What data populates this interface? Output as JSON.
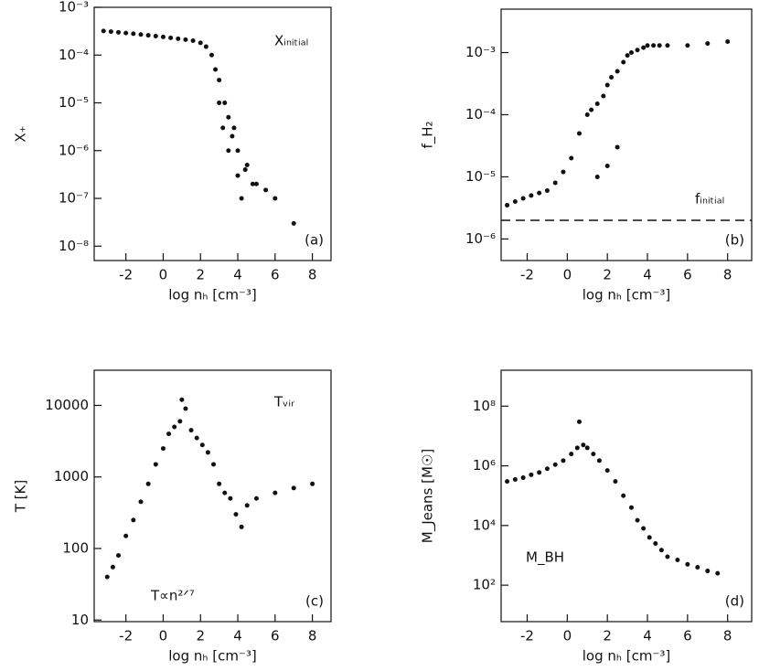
{
  "chart_data": [
    {
      "type": "scatter",
      "panel": "(a)",
      "ylabel": "X₊",
      "xlabel": "log nₕ [cm⁻³]",
      "annotation": "Xᵢₙᵢₜᵢₐₗ",
      "color": "#111",
      "yscale": "log",
      "xlim": [
        -3.7,
        9
      ],
      "ylim": [
        5e-09,
        0.001
      ],
      "xticks": [
        -2,
        0,
        2,
        4,
        6,
        8
      ],
      "yticks": [
        {
          "value": 0.001,
          "label": "10⁻³"
        },
        {
          "value": 0.0001,
          "label": "10⁻⁴"
        },
        {
          "value": 1e-05,
          "label": "10⁻⁵"
        },
        {
          "value": 1e-06,
          "label": "10⁻⁶"
        },
        {
          "value": 1e-07,
          "label": "10⁻⁷"
        },
        {
          "value": 1e-08,
          "label": "10⁻⁸"
        }
      ],
      "x": [
        -3.2,
        -2.8,
        -2.4,
        -2,
        -1.6,
        -1.2,
        -0.8,
        -0.4,
        0,
        0.4,
        0.8,
        1.2,
        1.6,
        2,
        2.3,
        2.6,
        2.8,
        3,
        3,
        3.2,
        3.3,
        3.5,
        3.5,
        3.7,
        3.8,
        4,
        4,
        4.2,
        4.4,
        4.5,
        4.8,
        5,
        5.5,
        6,
        7
      ],
      "values": [
        0.00032,
        0.00031,
        0.0003,
        0.00029,
        0.00028,
        0.00027,
        0.00026,
        0.00025,
        0.00024,
        0.00023,
        0.00022,
        0.00021,
        0.0002,
        0.00018,
        0.00015,
        0.0001,
        5e-05,
        3e-05,
        1e-05,
        3e-06,
        1e-05,
        1e-06,
        5e-06,
        2e-06,
        3e-06,
        1e-06,
        3e-07,
        1e-07,
        4e-07,
        5e-07,
        2e-07,
        2e-07,
        1.5e-07,
        1e-07,
        3e-08
      ]
    },
    {
      "type": "scatter",
      "panel": "(b)",
      "ylabel": "f_H₂",
      "xlabel": "log nₕ [cm⁻³]",
      "annotation": "fᵢₙᵢₜᵢₐₗ",
      "color": "#111",
      "yscale": "log",
      "xlim": [
        -3.3,
        9.2
      ],
      "ylim": [
        4.5e-07,
        0.005
      ],
      "hline": 2e-06,
      "xticks": [
        -2,
        0,
        2,
        4,
        6,
        8
      ],
      "yticks": [
        {
          "value": 0.001,
          "label": "10⁻³"
        },
        {
          "value": 0.0001,
          "label": "10⁻⁴"
        },
        {
          "value": 1e-05,
          "label": "10⁻⁵"
        },
        {
          "value": 1e-06,
          "label": "10⁻⁶"
        }
      ],
      "x": [
        -3,
        -2.6,
        -2.2,
        -1.8,
        -1.4,
        -1,
        -0.6,
        -0.2,
        0.2,
        0.6,
        1,
        1.2,
        1.5,
        1.8,
        2,
        2.2,
        2.5,
        2.8,
        3,
        3.2,
        3.5,
        3.8,
        4,
        4.3,
        4.6,
        5,
        6,
        7,
        8,
        1.5,
        2,
        2.5
      ],
      "values": [
        3.5e-06,
        4e-06,
        4.5e-06,
        5e-06,
        5.5e-06,
        6e-06,
        8e-06,
        1.2e-05,
        2e-05,
        5e-05,
        0.0001,
        0.00012,
        0.00015,
        0.0002,
        0.0003,
        0.0004,
        0.0005,
        0.0007,
        0.0009,
        0.001,
        0.0011,
        0.0012,
        0.0013,
        0.0013,
        0.0013,
        0.0013,
        0.0013,
        0.0014,
        0.0015,
        1e-05,
        1.5e-05,
        3e-05
      ]
    },
    {
      "type": "scatter",
      "panel": "(c)",
      "ylabel": "T [K]",
      "xlabel": "log nₕ [cm⁻³]",
      "annotation": "Tᵥᵢᵣ",
      "annotation2": "T∝n²ᐟ⁷",
      "color": "#111",
      "yscale": "log",
      "xlim": [
        -3.7,
        9
      ],
      "ylim": [
        9.5,
        31000
      ],
      "xticks": [
        -2,
        0,
        2,
        4,
        6,
        8
      ],
      "yticks": [
        10,
        100,
        1000,
        10000
      ],
      "x": [
        -3,
        -2.7,
        -2.4,
        -2,
        -1.6,
        -1.2,
        -0.8,
        -0.4,
        0,
        0.3,
        0.6,
        0.9,
        1.2,
        1.5,
        1,
        1.8,
        2.1,
        2.4,
        2.7,
        3,
        3.3,
        3.6,
        3.9,
        4.2,
        4.5,
        5,
        6,
        7,
        8
      ],
      "values": [
        40,
        55,
        80,
        150,
        250,
        450,
        800,
        1500,
        2500,
        4000,
        5000,
        6000,
        9000,
        4500,
        12000,
        3500,
        2800,
        2200,
        1500,
        800,
        600,
        500,
        300,
        200,
        400,
        500,
        600,
        700,
        800
      ]
    },
    {
      "type": "scatter",
      "panel": "(d)",
      "ylabel": "M_Jeans [M☉]",
      "xlabel": "log nₕ [cm⁻³]",
      "annotation": "M_BH",
      "color": "#111",
      "yscale": "log",
      "xlim": [
        -3.3,
        9.2
      ],
      "ylim": [
        6,
        1600000000
      ],
      "xticks": [
        -2,
        0,
        2,
        4,
        6,
        8
      ],
      "yticks": [
        {
          "value": 100,
          "label": "10²"
        },
        {
          "value": 10000,
          "label": "10⁴"
        },
        {
          "value": 1000000,
          "label": "10⁶"
        },
        {
          "value": 100000000,
          "label": "10⁸"
        }
      ],
      "x": [
        -3,
        -2.6,
        -2.2,
        -1.8,
        -1.4,
        -1,
        -0.6,
        -0.2,
        0.2,
        0.5,
        0.8,
        1,
        1.3,
        1.6,
        2,
        2.4,
        2.8,
        3.2,
        3.5,
        3.8,
        4.1,
        4.4,
        4.7,
        5,
        5.5,
        6,
        6.5,
        7,
        7.5,
        0.6
      ],
      "values": [
        300000,
        350000,
        400000,
        500000,
        600000,
        800000,
        1100000,
        1500000,
        2500000,
        4000000,
        5000000,
        4000000,
        2500000,
        1500000,
        700000,
        300000,
        100000,
        40000,
        15000,
        8000,
        4000,
        2500,
        1500,
        900,
        700,
        500,
        400,
        300,
        250,
        30000000
      ]
    }
  ]
}
